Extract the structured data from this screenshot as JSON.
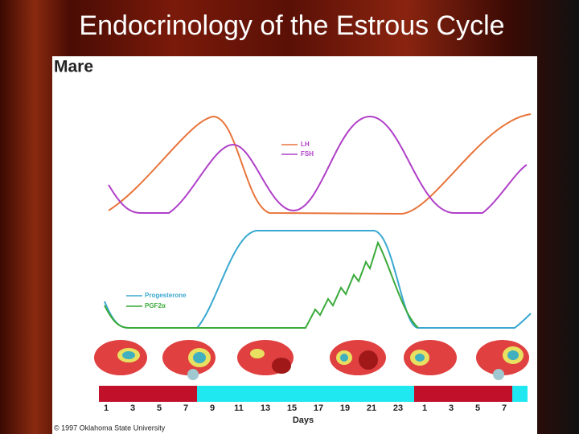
{
  "slide_title": "Endocrinology of the Estrous Cycle",
  "panel": {
    "title": "Mare",
    "legend_top": [
      "LH",
      "FSH"
    ],
    "legend_bottom": [
      "Progesterone",
      "PGF2α"
    ],
    "days": [
      1,
      3,
      5,
      7,
      9,
      11,
      13,
      15,
      17,
      19,
      21,
      23,
      1,
      3,
      5,
      7
    ],
    "axis_label": "Days",
    "copyright": "© 1997 Oklahoma State University"
  }
}
